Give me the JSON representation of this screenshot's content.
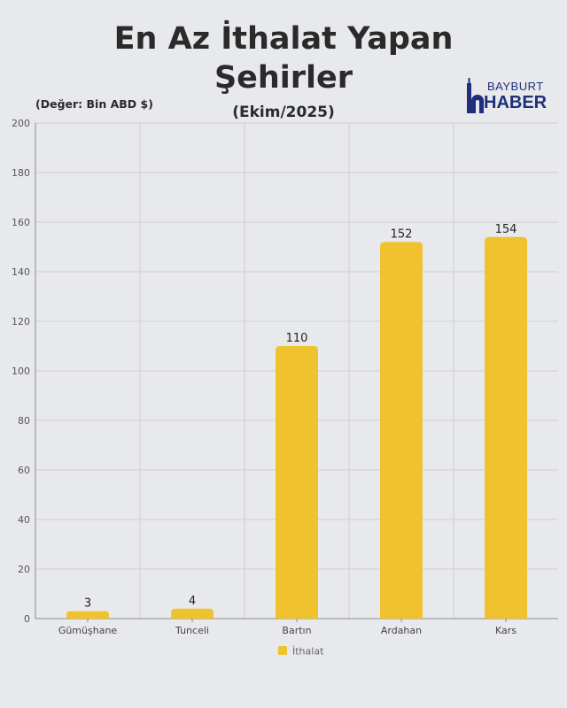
{
  "header": {
    "title_line1": "En Az İthalat Yapan",
    "title_line2": "Şehirler",
    "subtitle": "(Ekim/2025)",
    "unit": "(Değer: Bin ABD $)"
  },
  "logo": {
    "line1": "BAYBURT",
    "line2": "HABER"
  },
  "colors": {
    "bar": "#f0c22e",
    "grid": "#cfd0d3",
    "axis": "#8a8a8a"
  },
  "chart_data": {
    "type": "bar",
    "title": "En Az İthalat Yapan Şehirler",
    "subtitle": "(Ekim/2025)",
    "ylabel": "(Değer: Bin ABD $)",
    "categories": [
      "Gümüşhane",
      "Tunceli",
      "Bartın",
      "Ardahan",
      "Kars"
    ],
    "series": [
      {
        "name": "İthalat",
        "values": [
          3,
          4,
          110,
          152,
          154
        ]
      }
    ],
    "ylim": [
      0,
      200
    ],
    "yticks": [
      0,
      20,
      40,
      60,
      80,
      100,
      120,
      140,
      160,
      180,
      200
    ],
    "grid": true,
    "legend": "bottom-center"
  }
}
